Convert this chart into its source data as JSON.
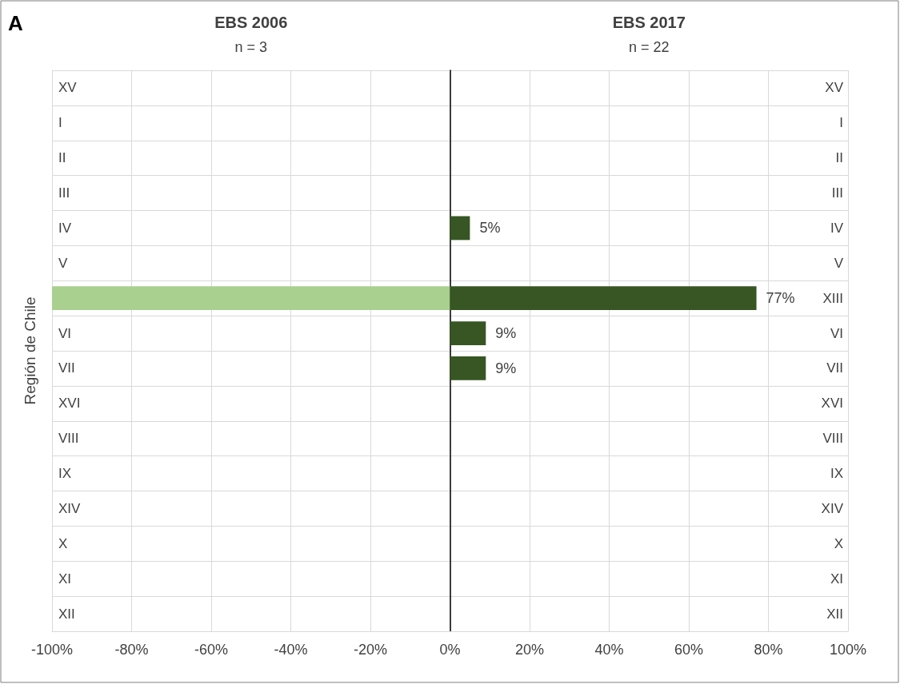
{
  "chart_data": {
    "type": "bar",
    "orientation": "horizontal",
    "stacked": true,
    "title": "A",
    "ylabel": "Región de Chile",
    "annotations": [
      "n = 3",
      "n = 22"
    ],
    "categories": [
      "XV",
      "I",
      "II",
      "III",
      "IV",
      "V",
      "XIII",
      "VI",
      "VII",
      "XVI",
      "VIII",
      "IX",
      "XIV",
      "X",
      "XI",
      "XII"
    ],
    "series": [
      {
        "name": "EBS 2006",
        "color": "#a9d08e",
        "values": [
          null,
          null,
          null,
          null,
          null,
          null,
          -100,
          null,
          null,
          null,
          null,
          null,
          null,
          null,
          null,
          null
        ]
      },
      {
        "name": "EBS 2017",
        "color": "#375623",
        "values": [
          null,
          null,
          null,
          null,
          5,
          null,
          77,
          9,
          9,
          null,
          null,
          null,
          null,
          null,
          null,
          null
        ],
        "value_labels": [
          null,
          null,
          null,
          null,
          "5%",
          null,
          "77%",
          "9%",
          "9%",
          null,
          null,
          null,
          null,
          null,
          null,
          null
        ]
      }
    ],
    "xlim": [
      -100,
      100
    ],
    "xticks": [
      {
        "value": -100,
        "label": "-100%"
      },
      {
        "value": -80,
        "label": "-80%"
      },
      {
        "value": -60,
        "label": "-60%"
      },
      {
        "value": -40,
        "label": "-40%"
      },
      {
        "value": -20,
        "label": "-20%"
      },
      {
        "value": 0,
        "label": "0%"
      },
      {
        "value": 20,
        "label": "20%"
      },
      {
        "value": 40,
        "label": "40%"
      },
      {
        "value": 60,
        "label": "60%"
      },
      {
        "value": 80,
        "label": "80%"
      },
      {
        "value": 100,
        "label": "100%"
      }
    ],
    "grid": true
  }
}
